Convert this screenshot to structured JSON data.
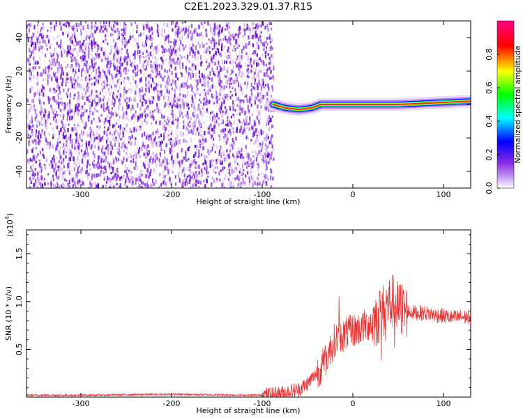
{
  "figure_title": "C2E1.2023.329.01.37.R15",
  "chart_data": [
    {
      "type": "heatmap",
      "xlabel": "Height of straight line (km)",
      "ylabel": "Frequency (Hz)",
      "xlim": [
        -360,
        130
      ],
      "ylim": [
        -50,
        50
      ],
      "x_ticks": [
        -300,
        -200,
        -100,
        0,
        100
      ],
      "y_ticks": [
        -40,
        -20,
        0,
        20,
        40
      ],
      "noise_region": [
        -360,
        -88
      ],
      "signal_track": [
        {
          "x": -88,
          "y": 0
        },
        {
          "x": -75,
          "y": -2
        },
        {
          "x": -60,
          "y": -3
        },
        {
          "x": -45,
          "y": -2
        },
        {
          "x": -35,
          "y": 0
        },
        {
          "x": -10,
          "y": 0
        },
        {
          "x": 20,
          "y": 0
        },
        {
          "x": 50,
          "y": 0
        },
        {
          "x": 90,
          "y": 1
        },
        {
          "x": 130,
          "y": 2
        }
      ],
      "colorbar": {
        "label": "Normalized spectral amplitude",
        "range": [
          0,
          1
        ],
        "ticks": [
          0.0,
          0.2,
          0.4,
          0.6,
          0.8
        ],
        "colors": [
          "#ffffff",
          "#8a2be2",
          "#0000ff",
          "#00ffff",
          "#00ff00",
          "#ffff00",
          "#ff0000",
          "#ff00aa"
        ]
      }
    },
    {
      "type": "line",
      "xlabel": "Height of straight line (km)",
      "ylabel": "SNR (10 * v/v)",
      "scale_label": "(x10",
      "scale_exp": "4",
      "scale_close": ")",
      "xlim": [
        -360,
        130
      ],
      "ylim": [
        0,
        1.75
      ],
      "x_ticks": [
        -300,
        -200,
        -100,
        0,
        100
      ],
      "y_ticks": [
        0.5,
        1.0,
        1.5
      ],
      "y_tick_labels": [
        "0.5",
        "1.0",
        "1.5"
      ],
      "color": "#ee3333",
      "series": [
        {
          "x": [
            -360,
            -300,
            -200,
            -110,
            -100,
            -80,
            -60,
            -50,
            -40,
            -30,
            -25,
            -20,
            -10,
            0,
            10,
            20,
            30,
            35,
            40,
            45,
            50,
            60,
            70,
            80,
            90,
            100,
            110,
            120,
            130
          ],
          "y": [
            0.02,
            0.02,
            0.03,
            0.02,
            0.02,
            0.04,
            0.08,
            0.14,
            0.25,
            0.38,
            0.5,
            0.6,
            0.65,
            0.7,
            0.72,
            0.78,
            0.85,
            0.92,
            0.98,
            1.0,
            0.92,
            0.9,
            0.88,
            0.88,
            0.86,
            0.85,
            0.83,
            0.84,
            0.83
          ]
        }
      ]
    }
  ]
}
